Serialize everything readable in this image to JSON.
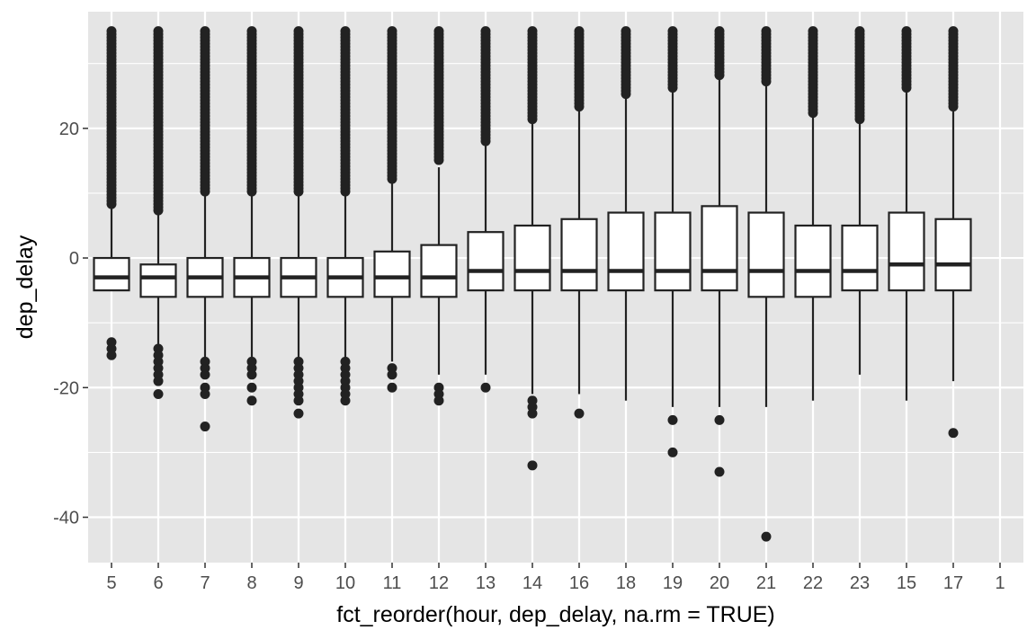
{
  "chart_data": {
    "type": "boxplot",
    "xlabel": "fct_reorder(hour, dep_delay, na.rm = TRUE)",
    "ylabel": "dep_delay",
    "ylim": [
      -47,
      38
    ],
    "y_ticks": [
      -40,
      -20,
      0,
      20
    ],
    "grid": true,
    "background_color": "#e5e5e5",
    "grid_color": "#ffffff",
    "mark_color": "#222222",
    "box_fill": "#ffffff",
    "categories": [
      "5",
      "6",
      "7",
      "8",
      "9",
      "10",
      "11",
      "12",
      "13",
      "14",
      "16",
      "18",
      "19",
      "20",
      "21",
      "22",
      "23",
      "15",
      "17",
      "1"
    ],
    "boxes": [
      {
        "x": "5",
        "lower": -5,
        "q1": -5,
        "median": -3,
        "q3": 0,
        "upper": 8,
        "outliers_low": [
          -13,
          -14,
          -15
        ],
        "outliers_high_from": 8,
        "outliers_high_to": 35
      },
      {
        "x": "6",
        "lower": -14,
        "q1": -6,
        "median": -3,
        "q3": -1,
        "upper": 7,
        "outliers_low": [
          -14,
          -15,
          -16,
          -17,
          -18,
          -19,
          -21
        ],
        "outliers_high_from": 7,
        "outliers_high_to": 35
      },
      {
        "x": "7",
        "lower": -16,
        "q1": -6,
        "median": -3,
        "q3": 0,
        "upper": 10,
        "outliers_low": [
          -16,
          -17,
          -18,
          -20,
          -21,
          -26
        ],
        "outliers_high_from": 10,
        "outliers_high_to": 35
      },
      {
        "x": "8",
        "lower": -16,
        "q1": -6,
        "median": -3,
        "q3": 0,
        "upper": 10,
        "outliers_low": [
          -16,
          -17,
          -18,
          -20,
          -22
        ],
        "outliers_high_from": 10,
        "outliers_high_to": 35
      },
      {
        "x": "9",
        "lower": -16,
        "q1": -6,
        "median": -3,
        "q3": 0,
        "upper": 10,
        "outliers_low": [
          -16,
          -17,
          -18,
          -19,
          -20,
          -21,
          -22,
          -24
        ],
        "outliers_high_from": 10,
        "outliers_high_to": 35
      },
      {
        "x": "10",
        "lower": -16,
        "q1": -6,
        "median": -3,
        "q3": 0,
        "upper": 10,
        "outliers_low": [
          -16,
          -17,
          -18,
          -19,
          -20,
          -21,
          -22
        ],
        "outliers_high_from": 10,
        "outliers_high_to": 35
      },
      {
        "x": "11",
        "lower": -16,
        "q1": -6,
        "median": -3,
        "q3": 1,
        "upper": 12,
        "outliers_low": [
          -17,
          -18,
          -20
        ],
        "outliers_high_from": 12,
        "outliers_high_to": 35
      },
      {
        "x": "12",
        "lower": -18,
        "q1": -6,
        "median": -3,
        "q3": 2,
        "upper": 14,
        "outliers_low": [
          -20,
          -21,
          -22
        ],
        "outliers_high_from": 15,
        "outliers_high_to": 35
      },
      {
        "x": "13",
        "lower": -18,
        "q1": -5,
        "median": -2,
        "q3": 4,
        "upper": 18,
        "outliers_low": [
          -20
        ],
        "outliers_high_from": 18,
        "outliers_high_to": 35
      },
      {
        "x": "14",
        "lower": -21,
        "q1": -5,
        "median": -2,
        "q3": 5,
        "upper": 21,
        "outliers_low": [
          -22,
          -23,
          -24,
          -32
        ],
        "outliers_high_from": 21,
        "outliers_high_to": 35
      },
      {
        "x": "16",
        "lower": -21,
        "q1": -5,
        "median": -2,
        "q3": 6,
        "upper": 23,
        "outliers_low": [
          -24
        ],
        "outliers_high_from": 23,
        "outliers_high_to": 35
      },
      {
        "x": "18",
        "lower": -22,
        "q1": -5,
        "median": -2,
        "q3": 7,
        "upper": 25,
        "outliers_low": [],
        "outliers_high_from": 25,
        "outliers_high_to": 35
      },
      {
        "x": "19",
        "lower": -23,
        "q1": -5,
        "median": -2,
        "q3": 7,
        "upper": 26,
        "outliers_low": [
          -25,
          -30
        ],
        "outliers_high_from": 26,
        "outliers_high_to": 35
      },
      {
        "x": "20",
        "lower": -23,
        "q1": -5,
        "median": -2,
        "q3": 8,
        "upper": 28,
        "outliers_low": [
          -25,
          -33
        ],
        "outliers_high_from": 28,
        "outliers_high_to": 35
      },
      {
        "x": "21",
        "lower": -23,
        "q1": -6,
        "median": -2,
        "q3": 7,
        "upper": 27,
        "outliers_low": [
          -43
        ],
        "outliers_high_from": 27,
        "outliers_high_to": 35
      },
      {
        "x": "22",
        "lower": -22,
        "q1": -6,
        "median": -2,
        "q3": 5,
        "upper": 22,
        "outliers_low": [],
        "outliers_high_from": 22,
        "outliers_high_to": 35
      },
      {
        "x": "23",
        "lower": -18,
        "q1": -5,
        "median": -2,
        "q3": 5,
        "upper": 21,
        "outliers_low": [],
        "outliers_high_from": 21,
        "outliers_high_to": 35
      },
      {
        "x": "15",
        "lower": -22,
        "q1": -5,
        "median": -1,
        "q3": 7,
        "upper": 26,
        "outliers_low": [],
        "outliers_high_from": 26,
        "outliers_high_to": 35
      },
      {
        "x": "17",
        "lower": -19,
        "q1": -5,
        "median": -1,
        "q3": 6,
        "upper": 23,
        "outliers_low": [
          -27
        ],
        "outliers_high_from": 23,
        "outliers_high_to": 35
      },
      {
        "x": "1",
        "lower": null,
        "q1": null,
        "median": null,
        "q3": null,
        "upper": null,
        "outliers_low": [],
        "outliers_high_from": null,
        "outliers_high_to": null
      }
    ]
  }
}
